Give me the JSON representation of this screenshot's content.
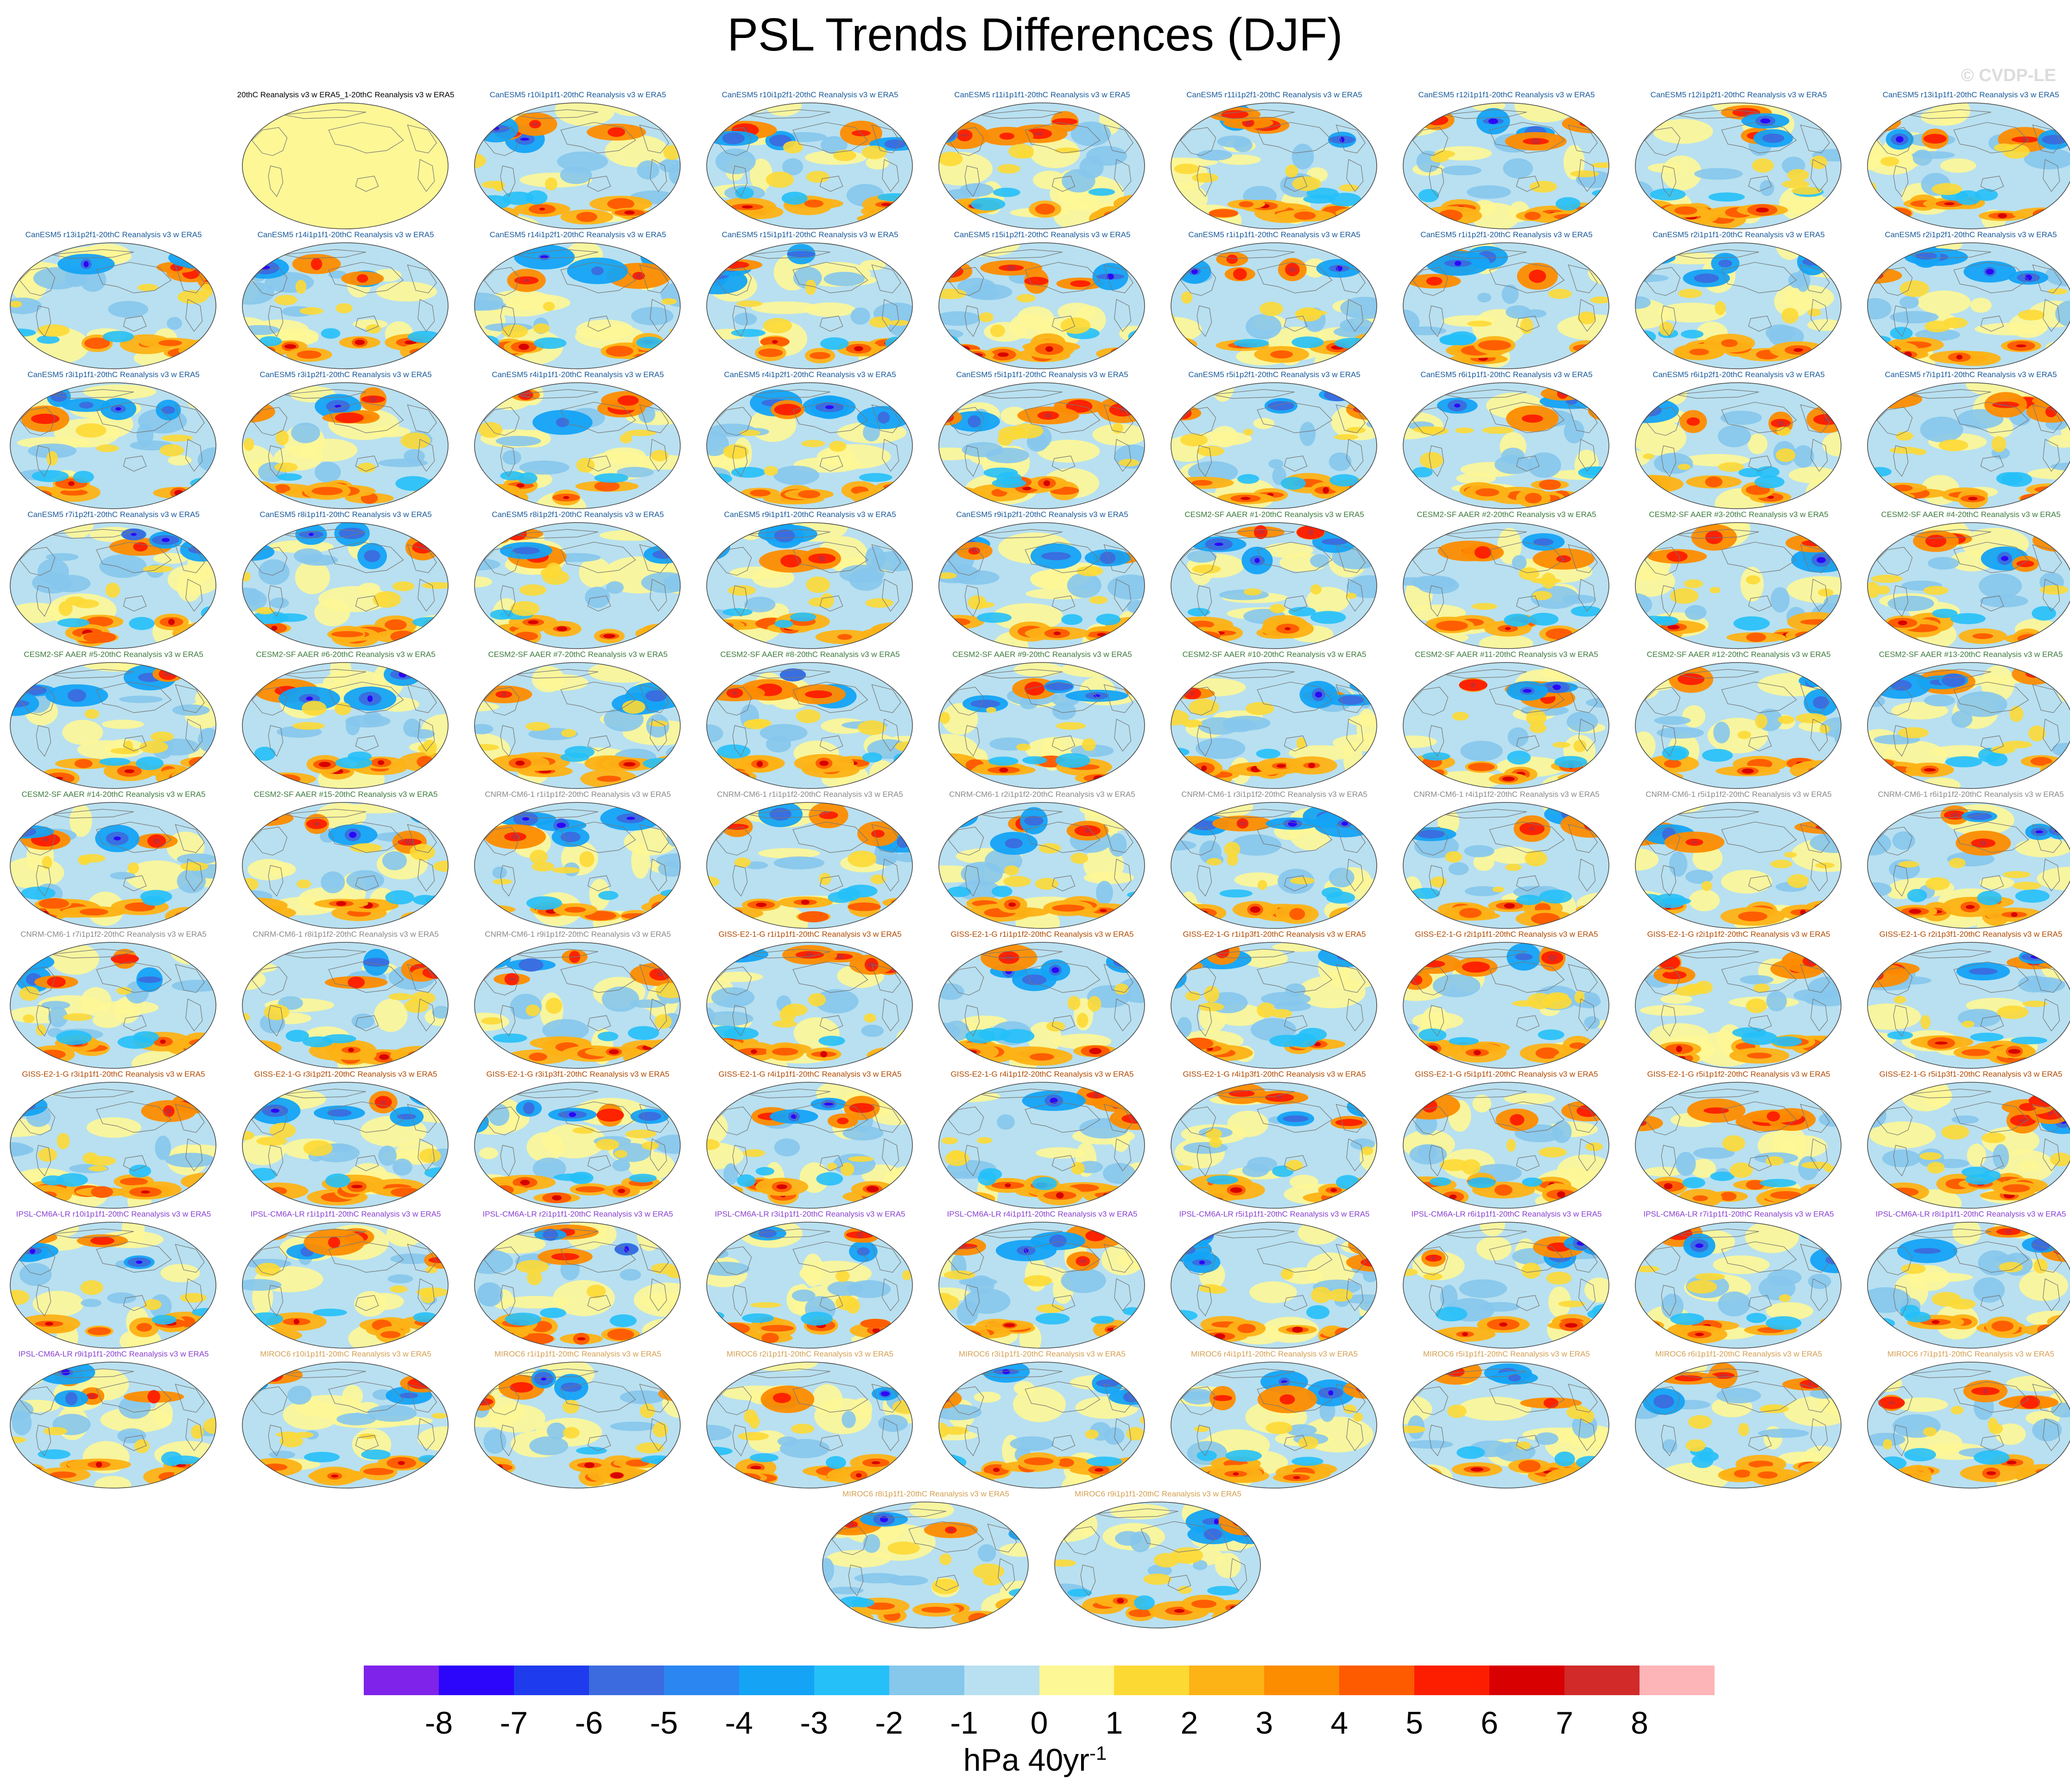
{
  "title": "PSL Trends Differences (DJF)",
  "watermark": "© CVDP-LE",
  "colorbar": {
    "units_main": "hPa 40yr",
    "units_exp": "-1",
    "tick_labels": [
      "-8",
      "-7",
      "-6",
      "-5",
      "-4",
      "-3",
      "-2",
      "-1",
      "0",
      "1",
      "2",
      "3",
      "4",
      "5",
      "6",
      "7",
      "8"
    ],
    "colors": [
      "#7f22ea",
      "#2b06fb",
      "#1f3bee",
      "#3b6bde",
      "#2b86f2",
      "#14a3f5",
      "#25c0f8",
      "#86c7ec",
      "#b8e0f0",
      "#fef796",
      "#fdd934",
      "#fdb215",
      "#fd8c00",
      "#fe5a00",
      "#fd1e00",
      "#d80000",
      "#d12a28",
      "#fdb5b7"
    ]
  },
  "panels": [
    {
      "label": "20thC Reanalysis v3 w ERA5_1-20thC Reanalysis v3 w ERA5",
      "model": "obs"
    },
    {
      "label": "CanESM5 r10i1p1f1-20thC Reanalysis v3 w ERA5",
      "model": "canesm"
    },
    {
      "label": "CanESM5 r10i1p2f1-20thC Reanalysis v3 w ERA5",
      "model": "canesm"
    },
    {
      "label": "CanESM5 r11i1p1f1-20thC Reanalysis v3 w ERA5",
      "model": "canesm"
    },
    {
      "label": "CanESM5 r11i1p2f1-20thC Reanalysis v3 w ERA5",
      "model": "canesm"
    },
    {
      "label": "CanESM5 r12i1p1f1-20thC Reanalysis v3 w ERA5",
      "model": "canesm"
    },
    {
      "label": "CanESM5 r12i1p2f1-20thC Reanalysis v3 w ERA5",
      "model": "canesm"
    },
    {
      "label": "CanESM5 r13i1p1f1-20thC Reanalysis v3 w ERA5",
      "model": "canesm"
    },
    {
      "label": "CanESM5 r13i1p2f1-20thC Reanalysis v3 w ERA5",
      "model": "canesm"
    },
    {
      "label": "CanESM5 r14i1p1f1-20thC Reanalysis v3 w ERA5",
      "model": "canesm"
    },
    {
      "label": "CanESM5 r14i1p2f1-20thC Reanalysis v3 w ERA5",
      "model": "canesm"
    },
    {
      "label": "CanESM5 r15i1p1f1-20thC Reanalysis v3 w ERA5",
      "model": "canesm"
    },
    {
      "label": "CanESM5 r15i1p2f1-20thC Reanalysis v3 w ERA5",
      "model": "canesm"
    },
    {
      "label": "CanESM5 r1i1p1f1-20thC Reanalysis v3 w ERA5",
      "model": "canesm"
    },
    {
      "label": "CanESM5 r1i1p2f1-20thC Reanalysis v3 w ERA5",
      "model": "canesm"
    },
    {
      "label": "CanESM5 r2i1p1f1-20thC Reanalysis v3 w ERA5",
      "model": "canesm"
    },
    {
      "label": "CanESM5 r2i1p2f1-20thC Reanalysis v3 w ERA5",
      "model": "canesm"
    },
    {
      "label": "CanESM5 r3i1p1f1-20thC Reanalysis v3 w ERA5",
      "model": "canesm"
    },
    {
      "label": "CanESM5 r3i1p2f1-20thC Reanalysis v3 w ERA5",
      "model": "canesm"
    },
    {
      "label": "CanESM5 r4i1p1f1-20thC Reanalysis v3 w ERA5",
      "model": "canesm"
    },
    {
      "label": "CanESM5 r4i1p2f1-20thC Reanalysis v3 w ERA5",
      "model": "canesm"
    },
    {
      "label": "CanESM5 r5i1p1f1-20thC Reanalysis v3 w ERA5",
      "model": "canesm"
    },
    {
      "label": "CanESM5 r5i1p2f1-20thC Reanalysis v3 w ERA5",
      "model": "canesm"
    },
    {
      "label": "CanESM5 r6i1p1f1-20thC Reanalysis v3 w ERA5",
      "model": "canesm"
    },
    {
      "label": "CanESM5 r6i1p2f1-20thC Reanalysis v3 w ERA5",
      "model": "canesm"
    },
    {
      "label": "CanESM5 r7i1p1f1-20thC Reanalysis v3 w ERA5",
      "model": "canesm"
    },
    {
      "label": "CanESM5 r7i1p2f1-20thC Reanalysis v3 w ERA5",
      "model": "canesm"
    },
    {
      "label": "CanESM5 r8i1p1f1-20thC Reanalysis v3 w ERA5",
      "model": "canesm"
    },
    {
      "label": "CanESM5 r8i1p2f1-20thC Reanalysis v3 w ERA5",
      "model": "canesm"
    },
    {
      "label": "CanESM5 r9i1p1f1-20thC Reanalysis v3 w ERA5",
      "model": "canesm"
    },
    {
      "label": "CanESM5 r9i1p2f1-20thC Reanalysis v3 w ERA5",
      "model": "canesm"
    },
    {
      "label": "CESM2-SF AAER #1-20thC Reanalysis v3 w ERA5",
      "model": "cesm"
    },
    {
      "label": "CESM2-SF AAER #2-20thC Reanalysis v3 w ERA5",
      "model": "cesm"
    },
    {
      "label": "CESM2-SF AAER #3-20thC Reanalysis v3 w ERA5",
      "model": "cesm"
    },
    {
      "label": "CESM2-SF AAER #4-20thC Reanalysis v3 w ERA5",
      "model": "cesm"
    },
    {
      "label": "CESM2-SF AAER #5-20thC Reanalysis v3 w ERA5",
      "model": "cesm"
    },
    {
      "label": "CESM2-SF AAER #6-20thC Reanalysis v3 w ERA5",
      "model": "cesm"
    },
    {
      "label": "CESM2-SF AAER #7-20thC Reanalysis v3 w ERA5",
      "model": "cesm"
    },
    {
      "label": "CESM2-SF AAER #8-20thC Reanalysis v3 w ERA5",
      "model": "cesm"
    },
    {
      "label": "CESM2-SF AAER #9-20thC Reanalysis v3 w ERA5",
      "model": "cesm"
    },
    {
      "label": "CESM2-SF AAER #10-20thC Reanalysis v3 w ERA5",
      "model": "cesm"
    },
    {
      "label": "CESM2-SF AAER #11-20thC Reanalysis v3 w ERA5",
      "model": "cesm"
    },
    {
      "label": "CESM2-SF AAER #12-20thC Reanalysis v3 w ERA5",
      "model": "cesm"
    },
    {
      "label": "CESM2-SF AAER #13-20thC Reanalysis v3 w ERA5",
      "model": "cesm"
    },
    {
      "label": "CESM2-SF AAER #14-20thC Reanalysis v3 w ERA5",
      "model": "cesm"
    },
    {
      "label": "CESM2-SF AAER #15-20thC Reanalysis v3 w ERA5",
      "model": "cesm"
    },
    {
      "label": "CNRM-CM6-1 r1i1p1f2-20thC Reanalysis v3 w ERA5",
      "model": "cnrm"
    },
    {
      "label": "CNRM-CM6-1 r1i1p1f2-20thC Reanalysis v3 w ERA5",
      "model": "cnrm"
    },
    {
      "label": "CNRM-CM6-1 r2i1p1f2-20thC Reanalysis v3 w ERA5",
      "model": "cnrm"
    },
    {
      "label": "CNRM-CM6-1 r3i1p1f2-20thC Reanalysis v3 w ERA5",
      "model": "cnrm"
    },
    {
      "label": "CNRM-CM6-1 r4i1p1f2-20thC Reanalysis v3 w ERA5",
      "model": "cnrm"
    },
    {
      "label": "CNRM-CM6-1 r5i1p1f2-20thC Reanalysis v3 w ERA5",
      "model": "cnrm"
    },
    {
      "label": "CNRM-CM6-1 r6i1p1f2-20thC Reanalysis v3 w ERA5",
      "model": "cnrm"
    },
    {
      "label": "CNRM-CM6-1 r7i1p1f2-20thC Reanalysis v3 w ERA5",
      "model": "cnrm"
    },
    {
      "label": "CNRM-CM6-1 r8i1p1f2-20thC Reanalysis v3 w ERA5",
      "model": "cnrm"
    },
    {
      "label": "CNRM-CM6-1 r9i1p1f2-20thC Reanalysis v3 w ERA5",
      "model": "cnrm"
    },
    {
      "label": "GISS-E2-1-G r1i1p1f1-20thC Reanalysis v3 w ERA5",
      "model": "giss"
    },
    {
      "label": "GISS-E2-1-G r1i1p1f2-20thC Reanalysis v3 w ERA5",
      "model": "giss"
    },
    {
      "label": "GISS-E2-1-G r1i1p3f1-20thC Reanalysis v3 w ERA5",
      "model": "giss"
    },
    {
      "label": "GISS-E2-1-G r2i1p1f1-20thC Reanalysis v3 w ERA5",
      "model": "giss"
    },
    {
      "label": "GISS-E2-1-G r2i1p1f2-20thC Reanalysis v3 w ERA5",
      "model": "giss"
    },
    {
      "label": "GISS-E2-1-G r2i1p3f1-20thC Reanalysis v3 w ERA5",
      "model": "giss"
    },
    {
      "label": "GISS-E2-1-G r3i1p1f1-20thC Reanalysis v3 w ERA5",
      "model": "giss"
    },
    {
      "label": "GISS-E2-1-G r3i1p2f1-20thC Reanalysis v3 w ERA5",
      "model": "giss"
    },
    {
      "label": "GISS-E2-1-G r3i1p3f1-20thC Reanalysis v3 w ERA5",
      "model": "giss"
    },
    {
      "label": "GISS-E2-1-G r4i1p1f1-20thC Reanalysis v3 w ERA5",
      "model": "giss"
    },
    {
      "label": "GISS-E2-1-G r4i1p1f2-20thC Reanalysis v3 w ERA5",
      "model": "giss"
    },
    {
      "label": "GISS-E2-1-G r4i1p3f1-20thC Reanalysis v3 w ERA5",
      "model": "giss"
    },
    {
      "label": "GISS-E2-1-G r5i1p1f1-20thC Reanalysis v3 w ERA5",
      "model": "giss"
    },
    {
      "label": "GISS-E2-1-G r5i1p1f2-20thC Reanalysis v3 w ERA5",
      "model": "giss"
    },
    {
      "label": "GISS-E2-1-G r5i1p3f1-20thC Reanalysis v3 w ERA5",
      "model": "giss"
    },
    {
      "label": "IPSL-CM6A-LR r10i1p1f1-20thC Reanalysis v3 w ERA5",
      "model": "ipsl"
    },
    {
      "label": "IPSL-CM6A-LR r1i1p1f1-20thC Reanalysis v3 w ERA5",
      "model": "ipsl"
    },
    {
      "label": "IPSL-CM6A-LR r2i1p1f1-20thC Reanalysis v3 w ERA5",
      "model": "ipsl"
    },
    {
      "label": "IPSL-CM6A-LR r3i1p1f1-20thC Reanalysis v3 w ERA5",
      "model": "ipsl"
    },
    {
      "label": "IPSL-CM6A-LR r4i1p1f1-20thC Reanalysis v3 w ERA5",
      "model": "ipsl"
    },
    {
      "label": "IPSL-CM6A-LR r5i1p1f1-20thC Reanalysis v3 w ERA5",
      "model": "ipsl"
    },
    {
      "label": "IPSL-CM6A-LR r6i1p1f1-20thC Reanalysis v3 w ERA5",
      "model": "ipsl"
    },
    {
      "label": "IPSL-CM6A-LR r7i1p1f1-20thC Reanalysis v3 w ERA5",
      "model": "ipsl"
    },
    {
      "label": "IPSL-CM6A-LR r8i1p1f1-20thC Reanalysis v3 w ERA5",
      "model": "ipsl"
    },
    {
      "label": "IPSL-CM6A-LR r9i1p1f1-20thC Reanalysis v3 w ERA5",
      "model": "ipsl"
    },
    {
      "label": "MIROC6 r10i1p1f1-20thC Reanalysis v3 w ERA5",
      "model": "miroc"
    },
    {
      "label": "MIROC6 r1i1p1f1-20thC Reanalysis v3 w ERA5",
      "model": "miroc"
    },
    {
      "label": "MIROC6 r2i1p1f1-20thC Reanalysis v3 w ERA5",
      "model": "miroc"
    },
    {
      "label": "MIROC6 r3i1p1f1-20thC Reanalysis v3 w ERA5",
      "model": "miroc"
    },
    {
      "label": "MIROC6 r4i1p1f1-20thC Reanalysis v3 w ERA5",
      "model": "miroc"
    },
    {
      "label": "MIROC6 r5i1p1f1-20thC Reanalysis v3 w ERA5",
      "model": "miroc"
    },
    {
      "label": "MIROC6 r6i1p1f1-20thC Reanalysis v3 w ERA5",
      "model": "miroc"
    },
    {
      "label": "MIROC6 r7i1p1f1-20thC Reanalysis v3 w ERA5",
      "model": "miroc"
    },
    {
      "label": "MIROC6 r8i1p1f1-20thC Reanalysis v3 w ERA5",
      "model": "miroc"
    },
    {
      "label": "MIROC6 r9i1p1f1-20thC Reanalysis v3 w ERA5",
      "model": "miroc"
    }
  ],
  "model_colors": {
    "obs": "#000000",
    "canesm": "#1a5a9a",
    "cesm": "#3d7a3d",
    "cnrm": "#8a8a8a",
    "giss": "#b04a00",
    "ipsl": "#8a40d0",
    "miroc": "#d4a052"
  }
}
